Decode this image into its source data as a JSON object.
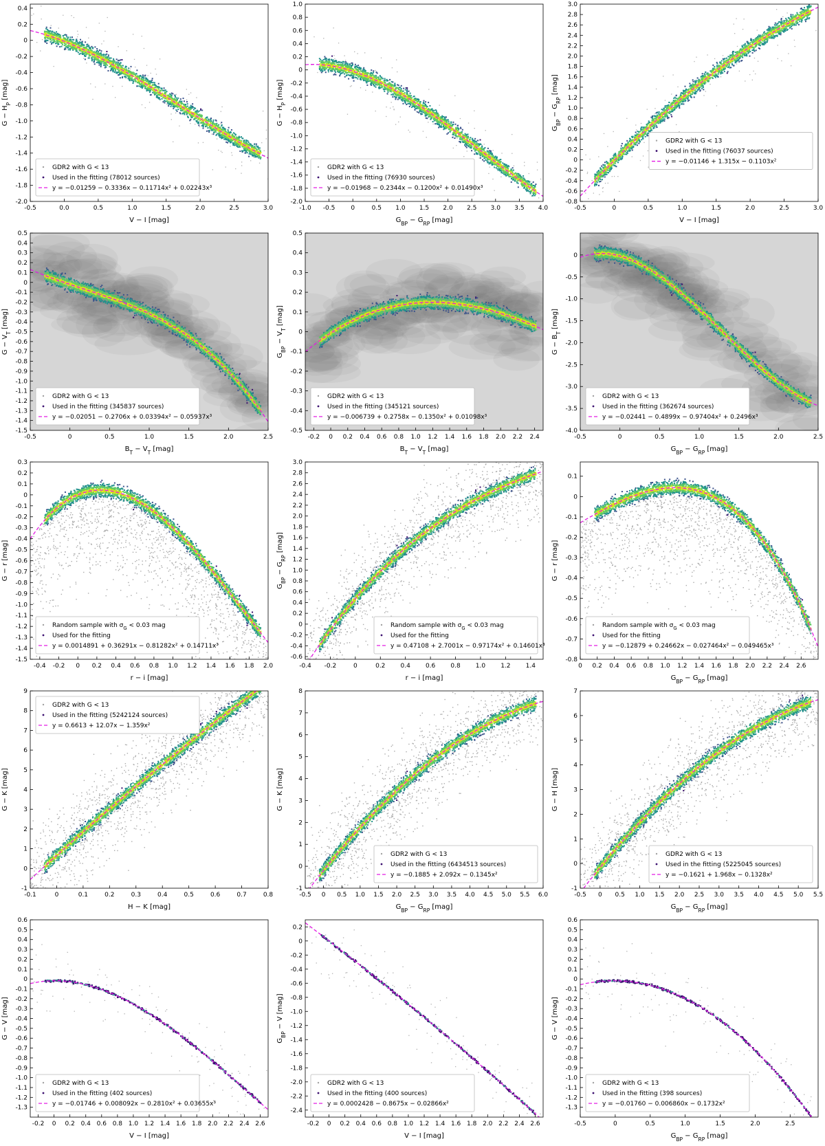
{
  "colors": {
    "background": "#8c8c8c",
    "used": "#3b0f6f",
    "dense": "#21918c",
    "core": "#d8e219",
    "fit": "#e31ae3"
  },
  "chart_data": [
    {
      "type": "scatter",
      "xlabel": "V − I [mag]",
      "ylabel": "G − H_P [mag]",
      "xlim": [
        -0.5,
        3.0
      ],
      "ylim": [
        -2.0,
        0.45
      ],
      "xticks": [
        "-0.5",
        "0.0",
        "0.5",
        "1.0",
        "1.5",
        "2.0",
        "2.5",
        "3.0"
      ],
      "yticks": [
        "0.4",
        "0.2",
        "0",
        "-0.2",
        "-0.4",
        "-0.6",
        "-0.8",
        "-1.0",
        "-1.2",
        "-1.4",
        "-1.6",
        "-1.8",
        "-2.0"
      ],
      "legend": [
        "GDR2 with G < 13",
        "Used in the fitting (78012 sources)",
        "y = −0.01259 − 0.3336x − 0.11714x² + 0.02243x³"
      ],
      "legend_pos": "lower-left",
      "coef": [
        -0.01259,
        -0.3336,
        -0.11714,
        0.02243
      ],
      "bg": "none",
      "trend": "lin"
    },
    {
      "type": "scatter",
      "xlabel": "G_BP − G_RP [mag]",
      "ylabel": "G − H_P [mag]",
      "xlim": [
        -1.0,
        4.0
      ],
      "ylim": [
        -2.0,
        1.0
      ],
      "xticks": [
        "-1.0",
        "-0.5",
        "0",
        "0.5",
        "1.0",
        "1.5",
        "2.0",
        "2.5",
        "3.0",
        "3.5",
        "4.0"
      ],
      "yticks": [
        "1.0",
        "0.8",
        "0.6",
        "0.4",
        "0.2",
        "0",
        "-0.2",
        "-0.4",
        "-0.6",
        "-0.8",
        "-1.0",
        "-1.2",
        "-1.4",
        "-1.6",
        "-1.8",
        "-2.0"
      ],
      "legend": [
        "GDR2 with G < 13",
        "Used in the fitting (76930 sources)",
        "y = −0.01968 − 0.2344x − 0.1200x² + 0.01490x³"
      ],
      "legend_pos": "lower-left",
      "coef": [
        -0.01968,
        -0.2344,
        -0.12,
        0.0149
      ],
      "bg": "none",
      "trend": "lin"
    },
    {
      "type": "scatter",
      "xlabel": "V − I [mag]",
      "ylabel": "G_BP − G_RP [mag]",
      "xlim": [
        -0.5,
        3.0
      ],
      "ylim": [
        -0.8,
        3.0
      ],
      "xticks": [
        "-0.5",
        "0",
        "0.5",
        "1.0",
        "1.5",
        "2.0",
        "2.5",
        "3.0"
      ],
      "yticks": [
        "3.0",
        "2.8",
        "2.6",
        "2.4",
        "2.2",
        "2.0",
        "1.8",
        "1.6",
        "1.4",
        "1.2",
        "1.0",
        "0.8",
        "0.6",
        "0.4",
        "0.2",
        "0",
        "-0.2",
        "-0.4",
        "-0.6",
        "-0.8"
      ],
      "legend": [
        "GDR2 with G < 13",
        "Used in the fitting (76037 sources)",
        "y = −0.01146 + 1.315x − 0.1103x²"
      ],
      "legend_pos": "right",
      "coef": [
        -0.01146,
        1.315,
        -0.1103
      ],
      "bg": "none",
      "trend": "lin"
    },
    {
      "type": "scatter",
      "xlabel": "B_T − V_T [mag]",
      "ylabel": "G − V_T [mag]",
      "xlim": [
        -0.5,
        2.5
      ],
      "ylim": [
        -1.5,
        0.5
      ],
      "xticks": [
        "-0.5",
        "0",
        "0.5",
        "1.0",
        "1.5",
        "2.0",
        "2.5"
      ],
      "yticks": [
        "0.5",
        "0.4",
        "0.3",
        "0.2",
        "0.1",
        "0",
        "-0.1",
        "-0.2",
        "-0.3",
        "-0.4",
        "-0.5",
        "-0.6",
        "-0.7",
        "-0.8",
        "-0.9",
        "-1.0",
        "-1.1",
        "-1.2",
        "-1.3",
        "-1.4",
        "-1.5"
      ],
      "legend": [
        "GDR2 with G < 13",
        "Used in the fitting (345837 sources)",
        "y = −0.02051 − 0.2706x + 0.03394x² − 0.05937x³"
      ],
      "legend_pos": "lower-left",
      "coef": [
        -0.02051,
        -0.2706,
        0.03394,
        -0.05937
      ],
      "bg": "full",
      "trend": "lin"
    },
    {
      "type": "scatter",
      "xlabel": "B_T − V_T [mag]",
      "ylabel": "G_BP − V_T [mag]",
      "xlim": [
        -0.3,
        2.5
      ],
      "ylim": [
        -0.5,
        0.5
      ],
      "xticks": [
        "-0.2",
        "0",
        "0.2",
        "0.4",
        "0.6",
        "0.8",
        "1.0",
        "1.2",
        "1.4",
        "1.6",
        "1.8",
        "2.0",
        "2.2",
        "2.4"
      ],
      "yticks": [
        "0.5",
        "0.4",
        "0.3",
        "0.2",
        "0.1",
        "0",
        "-0.1",
        "-0.2",
        "-0.3",
        "-0.4",
        "-0.5"
      ],
      "legend": [
        "GDR2 with G < 13",
        "Used in the fitting (345121 sources)",
        "y = −0.006739 + 0.2758x − 0.1350x² + 0.01098x³"
      ],
      "legend_pos": "lower-left",
      "coef": [
        -0.006739,
        0.2758,
        -0.135,
        0.01098
      ],
      "bg": "full",
      "trend": "lin"
    },
    {
      "type": "scatter",
      "xlabel": "G_BP − G_RP [mag]",
      "ylabel": "G − B_T [mag]",
      "xlim": [
        -0.5,
        2.5
      ],
      "ylim": [
        -4.0,
        0.5
      ],
      "xticks": [
        "-0.5",
        "0",
        "0.5",
        "1.0",
        "1.5",
        "2.0",
        "2.5"
      ],
      "yticks": [
        "0",
        "-0.5",
        "-1.0",
        "-1.5",
        "-2.0",
        "-2.5",
        "-3.0",
        "-3.5",
        "-4.0"
      ],
      "legend": [
        "GDR2 with G < 13",
        "Used in the fitting (362674 sources)",
        "y = −0.02441 − 0.4899x − 0.97404x² + 0.2496x³"
      ],
      "legend_pos": "lower-left",
      "coef": [
        -0.02441,
        -0.4899,
        -0.97404,
        0.2496
      ],
      "bg": "full",
      "trend": "lin"
    },
    {
      "type": "scatter",
      "xlabel": "r − i [mag]",
      "ylabel": "G − r [mag]",
      "xlim": [
        -0.5,
        2.0
      ],
      "ylim": [
        -1.5,
        0.3
      ],
      "xticks": [
        "-0.4",
        "-0.2",
        "0",
        "0.2",
        "0.4",
        "0.6",
        "0.8",
        "1.0",
        "1.2",
        "1.4",
        "1.6",
        "1.8",
        "2.0"
      ],
      "yticks": [
        "0.3",
        "0.2",
        "0.1",
        "0",
        "-0.1",
        "-0.2",
        "-0.3",
        "-0.4",
        "-0.5",
        "-0.6",
        "-0.7",
        "-0.8",
        "-0.9",
        "-1.0",
        "-1.1",
        "-1.2",
        "-1.3",
        "-1.4",
        "-1.5"
      ],
      "legend": [
        "Random sample with σ_G < 0.03 mag",
        "Used for the fitting",
        "y = 0.0014891 + 0.36291x − 0.81282x² + 0.14711x³"
      ],
      "legend_pos": "lower-left",
      "coef": [
        0.0014891,
        0.36291,
        -0.81282,
        0.14711
      ],
      "bg": "lower",
      "trend": "band"
    },
    {
      "type": "scatter",
      "xlabel": "r − i [mag]",
      "ylabel": "G_BP − G_RP [mag]",
      "xlim": [
        -0.4,
        1.5
      ],
      "ylim": [
        -0.65,
        3.0
      ],
      "xticks": [
        "-0.4",
        "-0.2",
        "0",
        "0.2",
        "0.4",
        "0.6",
        "0.8",
        "1.0",
        "1.2",
        "1.4"
      ],
      "yticks": [
        "3.0",
        "2.8",
        "2.6",
        "2.4",
        "2.2",
        "2.0",
        "1.8",
        "1.6",
        "1.4",
        "1.2",
        "1.0",
        "0.8",
        "0.6",
        "0.4",
        "0.2",
        "0",
        "-0.2",
        "-0.4",
        "-0.6"
      ],
      "legend": [
        "Random sample with σ_G < 0.03 mag",
        "Used for the fitting",
        "y = 0.47108 + 2.7001x − 0.97174x² + 0.14601x³"
      ],
      "legend_pos": "lower-right",
      "coef": [
        0.47108,
        2.7001,
        -0.97174,
        0.14601
      ],
      "bg": "band",
      "trend": "band"
    },
    {
      "type": "scatter",
      "xlabel": "G_BP − G_RP [mag]",
      "ylabel": "G − r [mag]",
      "xlim": [
        0.0,
        2.8
      ],
      "ylim": [
        -0.8,
        0.17
      ],
      "xticks": [
        "0",
        "0.2",
        "0.4",
        "0.6",
        "0.8",
        "1.0",
        "1.2",
        "1.4",
        "1.6",
        "1.8",
        "2.0",
        "2.2",
        "2.4",
        "2.6"
      ],
      "yticks": [
        "0.1",
        "0",
        "-0.1",
        "-0.2",
        "-0.3",
        "-0.4",
        "-0.5",
        "-0.6",
        "-0.7",
        "-0.8"
      ],
      "legend": [
        "Random sample with σ_G < 0.03 mag",
        "Used for the fitting",
        "y = −0.12879 + 0.24662x − 0.027464x² − 0.049465x³"
      ],
      "legend_pos": "lower-left",
      "coef": [
        -0.12879,
        0.24662,
        -0.027464,
        -0.049465
      ],
      "bg": "lower",
      "trend": "band"
    },
    {
      "type": "scatter",
      "xlabel": "H − K [mag]",
      "ylabel": "G − K [mag]",
      "xlim": [
        -0.1,
        0.8
      ],
      "ylim": [
        -1.0,
        9.0
      ],
      "xticks": [
        "-0.1",
        "0",
        "0.1",
        "0.2",
        "0.3",
        "0.4",
        "0.5",
        "0.6",
        "0.7",
        "0.8"
      ],
      "yticks": [
        "9",
        "8",
        "7",
        "6",
        "5",
        "4",
        "3",
        "2",
        "1",
        "0",
        "-1"
      ],
      "legend": [
        "GDR2 with G < 13",
        "Used in the fitting (5242124 sources)",
        "y = 0.6613 + 12.07x − 1.359x²"
      ],
      "legend_pos": "upper-left",
      "coef": [
        0.6613,
        12.07,
        -1.359
      ],
      "bg": "band",
      "trend": "band"
    },
    {
      "type": "scatter",
      "xlabel": "G_BP − G_RP [mag]",
      "ylabel": "G − K [mag]",
      "xlim": [
        -0.5,
        6.0
      ],
      "ylim": [
        -1.0,
        8.0
      ],
      "xticks": [
        "-0.5",
        "0",
        "0.5",
        "1.0",
        "1.5",
        "2.0",
        "2.5",
        "3.0",
        "3.5",
        "4.0",
        "4.5",
        "5.0",
        "5.5",
        "6.0"
      ],
      "yticks": [
        "8",
        "7",
        "6",
        "5",
        "4",
        "3",
        "2",
        "1",
        "0",
        "-1"
      ],
      "legend": [
        "GDR2 with G < 13",
        "Used in the fitting (6434513 sources)",
        "y = −0.1885 + 2.092x − 0.1345x²"
      ],
      "legend_pos": "lower-right",
      "coef": [
        -0.1885,
        2.092,
        -0.1345
      ],
      "bg": "band",
      "trend": "band"
    },
    {
      "type": "scatter",
      "xlabel": "G_BP − G_RP [mag]",
      "ylabel": "G − H [mag]",
      "xlim": [
        -0.5,
        5.5
      ],
      "ylim": [
        -1.0,
        7.0
      ],
      "xticks": [
        "-0.5",
        "0",
        "0.5",
        "1.0",
        "1.5",
        "2.0",
        "2.5",
        "3.0",
        "3.5",
        "4.0",
        "4.5",
        "5.0",
        "5.5"
      ],
      "yticks": [
        "7",
        "6",
        "5",
        "4",
        "3",
        "2",
        "1",
        "0",
        "-1"
      ],
      "legend": [
        "GDR2 with G < 13",
        "Used in the fitting (5225045 sources)",
        "y = −0.1621 + 1.968x − 0.1328x²"
      ],
      "legend_pos": "lower-right",
      "coef": [
        -0.1621,
        1.968,
        -0.1328
      ],
      "bg": "band",
      "trend": "band"
    },
    {
      "type": "scatter",
      "xlabel": "V − I [mag]",
      "ylabel": "G − V [mag]",
      "xlim": [
        -0.3,
        2.7
      ],
      "ylim": [
        -1.4,
        0.6
      ],
      "xticks": [
        "-0.2",
        "0",
        "0.2",
        "0.4",
        "0.6",
        "0.8",
        "1.0",
        "1.2",
        "1.4",
        "1.6",
        "1.8",
        "2.0",
        "2.2",
        "2.4",
        "2.6"
      ],
      "yticks": [
        "0.6",
        "0.5",
        "0.4",
        "0.3",
        "0.2",
        "0.1",
        "0",
        "-0.1",
        "-0.2",
        "-0.3",
        "-0.4",
        "-0.5",
        "-0.6",
        "-0.7",
        "-0.8",
        "-0.9",
        "-1.0",
        "-1.1",
        "-1.2",
        "-1.3"
      ],
      "legend": [
        "GDR2 with G < 13",
        "Used in the fitting (402 sources)",
        "y = −0.01746 + 0.008092x − 0.2810x² + 0.03655x³"
      ],
      "legend_pos": "lower-left",
      "coef": [
        -0.01746,
        0.008092,
        -0.281,
        0.03655
      ],
      "bg": "none",
      "trend": "sparse"
    },
    {
      "type": "scatter",
      "xlabel": "V − I [mag]",
      "ylabel": "G_BP − V [mag]",
      "xlim": [
        -0.3,
        2.7
      ],
      "ylim": [
        -2.5,
        0.3
      ],
      "xticks": [
        "-0.2",
        "0",
        "0.2",
        "0.4",
        "0.6",
        "0.8",
        "1.0",
        "1.2",
        "1.4",
        "1.6",
        "1.8",
        "2.0",
        "2.2",
        "2.4",
        "2.6"
      ],
      "yticks": [
        "0.2",
        "0",
        "-0.2",
        "-0.4",
        "-0.6",
        "-0.8",
        "-1.0",
        "-1.2",
        "-1.4",
        "-1.6",
        "-1.8",
        "-2.0",
        "-2.2",
        "-2.4"
      ],
      "legend": [
        "GDR2 with G < 13",
        "Used in the fitting (400 sources)",
        "y = 0.0002428 − 0.8675x − 0.02866x²"
      ],
      "legend_pos": "lower-left",
      "coef": [
        0.0002428,
        -0.8675,
        -0.02866
      ],
      "bg": "none",
      "trend": "sparse"
    },
    {
      "type": "scatter",
      "xlabel": "G_BP − G_RP [mag]",
      "ylabel": "G − V [mag]",
      "xlim": [
        -0.5,
        2.9
      ],
      "ylim": [
        -1.4,
        0.6
      ],
      "xticks": [
        "-0.5",
        "0",
        "0.5",
        "1.0",
        "1.5",
        "2.0",
        "2.5"
      ],
      "yticks": [
        "0.6",
        "0.5",
        "0.4",
        "0.3",
        "0.2",
        "0.1",
        "0",
        "-0.1",
        "-0.2",
        "-0.3",
        "-0.4",
        "-0.5",
        "-0.6",
        "-0.7",
        "-0.8",
        "-0.9",
        "-1.0",
        "-1.1",
        "-1.2",
        "-1.3"
      ],
      "legend": [
        "GDR2 with G < 13",
        "Used in the fitting (398 sources)",
        "y = −0.01760 − 0.006860x − 0.1732x²"
      ],
      "legend_pos": "lower-left",
      "coef": [
        -0.0176,
        -0.00686,
        -0.1732
      ],
      "bg": "none",
      "trend": "sparse"
    }
  ]
}
